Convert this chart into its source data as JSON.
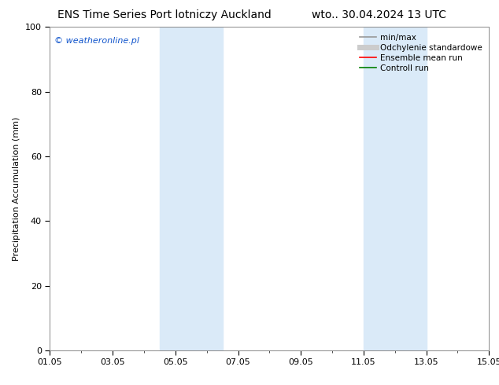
{
  "title_left": "ENS Time Series Port lotniczy Auckland",
  "title_right": "wto.. 30.04.2024 13 UTC",
  "ylabel": "Precipitation Accumulation (mm)",
  "ylim": [
    0,
    100
  ],
  "xlim": [
    0,
    14
  ],
  "xtick_positions": [
    0,
    2,
    4,
    6,
    8,
    10,
    12,
    14
  ],
  "xtick_labels": [
    "01.05",
    "03.05",
    "05.05",
    "07.05",
    "09.05",
    "11.05",
    "13.05",
    "15.05"
  ],
  "ytick_positions": [
    0,
    20,
    40,
    60,
    80,
    100
  ],
  "watermark": "© weatheronline.pl",
  "shade_bands": [
    {
      "xmin": 3.5,
      "xmax": 5.5,
      "color": "#daeaf8"
    },
    {
      "xmin": 10.0,
      "xmax": 12.0,
      "color": "#daeaf8"
    }
  ],
  "legend_items": [
    {
      "label": "min/max",
      "color": "#999999",
      "lw": 1.2
    },
    {
      "label": "Odchylenie standardowe",
      "color": "#cccccc",
      "lw": 5
    },
    {
      "label": "Ensemble mean run",
      "color": "#ff0000",
      "lw": 1.2
    },
    {
      "label": "Controll run",
      "color": "#008000",
      "lw": 1.2
    }
  ],
  "background_color": "#ffffff",
  "plot_bg_color": "#ffffff",
  "title_fontsize": 10,
  "label_fontsize": 8,
  "tick_fontsize": 8,
  "watermark_color": "#1155cc",
  "watermark_fontsize": 8,
  "legend_fontsize": 7.5
}
